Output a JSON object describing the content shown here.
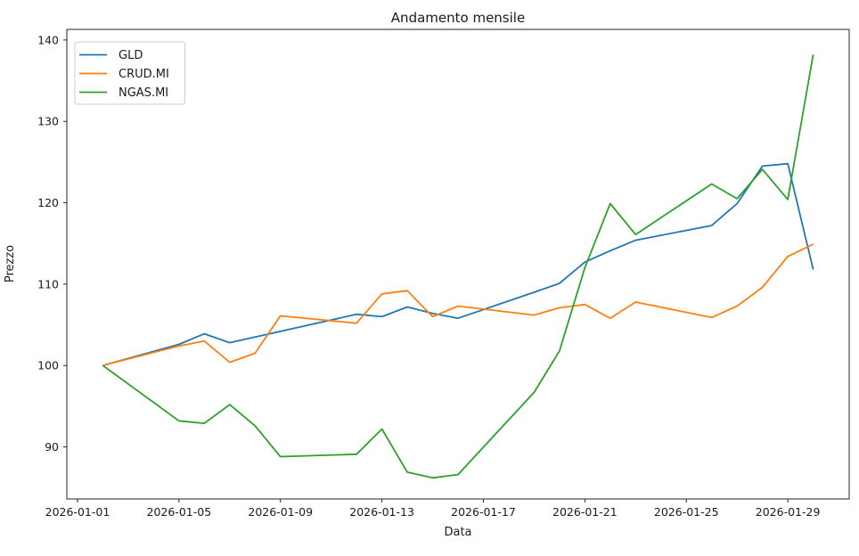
{
  "chart": {
    "title": "Andamento mensile",
    "xlabel": "Data",
    "ylabel": "Prezzo"
  },
  "chart_data": {
    "type": "line",
    "title": "Andamento mensile",
    "xlabel": "Data",
    "ylabel": "Prezzo",
    "grid": false,
    "legend_position": "upper left",
    "x": [
      "2026-01-02",
      "2026-01-05",
      "2026-01-06",
      "2026-01-07",
      "2026-01-08",
      "2026-01-09",
      "2026-01-12",
      "2026-01-13",
      "2026-01-14",
      "2026-01-15",
      "2026-01-16",
      "2026-01-19",
      "2026-01-20",
      "2026-01-21",
      "2026-01-22",
      "2026-01-23",
      "2026-01-26",
      "2026-01-27",
      "2026-01-28",
      "2026-01-29",
      "2026-01-30"
    ],
    "series": [
      {
        "name": "GLD",
        "color": "#1f77b4",
        "values": [
          100.0,
          102.6,
          103.9,
          102.8,
          103.5,
          104.2,
          106.3,
          106.0,
          107.2,
          106.4,
          105.8,
          109.0,
          110.1,
          112.7,
          114.1,
          115.4,
          117.2,
          119.9,
          124.5,
          124.8,
          111.8
        ]
      },
      {
        "name": "CRUD.MI",
        "color": "#ff7f0e",
        "values": [
          100.0,
          102.4,
          103.0,
          100.4,
          101.5,
          106.1,
          105.2,
          108.8,
          109.2,
          106.0,
          107.3,
          106.2,
          107.1,
          107.5,
          105.8,
          107.8,
          105.9,
          107.3,
          109.6,
          113.4,
          114.9
        ]
      },
      {
        "name": "NGAS.MI",
        "color": "#2ca02c",
        "values": [
          100.0,
          93.2,
          92.9,
          95.2,
          92.6,
          88.8,
          89.1,
          92.2,
          86.9,
          86.2,
          86.6,
          96.7,
          101.8,
          112.0,
          119.9,
          116.1,
          122.3,
          120.5,
          124.1,
          120.4,
          138.2
        ]
      }
    ],
    "x_ticks": [
      "2026-01-01",
      "2026-01-05",
      "2026-01-09",
      "2026-01-13",
      "2026-01-17",
      "2026-01-21",
      "2026-01-25",
      "2026-01-29"
    ],
    "y_ticks": [
      90,
      100,
      110,
      120,
      130,
      140
    ],
    "ylim": [
      83.6,
      141.3
    ],
    "xlim_days": [
      -0.42,
      30.42
    ]
  }
}
